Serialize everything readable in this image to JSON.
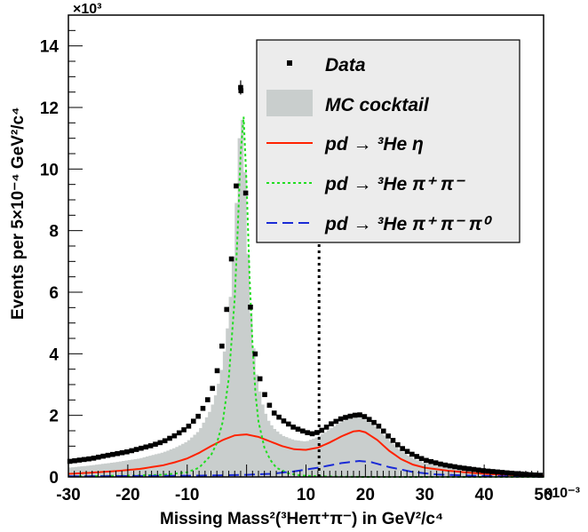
{
  "chart_data": {
    "type": "line",
    "title": "",
    "xlabel": "Missing Mass²(³Heπ⁺π⁻)  in GeV²/c⁴",
    "ylabel": "Events per   5×10⁻⁴ GeV²/c⁴",
    "x_multiplier": "×10⁻³",
    "y_multiplier": "×10³",
    "xlim": [
      -30,
      50
    ],
    "ylim": [
      0,
      15
    ],
    "x_ticks": [
      -30,
      -20,
      -10,
      10,
      20,
      30,
      40,
      50
    ],
    "y_ticks": [
      2,
      4,
      6,
      8,
      10,
      12,
      14
    ],
    "grid": false,
    "legend_position": "top-right",
    "cut_line_x": 12.2,
    "legend": [
      {
        "key": "data",
        "label": "Data",
        "style": "markers"
      },
      {
        "key": "mc",
        "label": "MC cocktail",
        "style": "filled",
        "color": "#c9cecd"
      },
      {
        "key": "eta",
        "label": "pd → ³He η",
        "style": "solid",
        "color": "#ff2200"
      },
      {
        "key": "pipi",
        "label": "pd → ³He π⁺ π⁻",
        "style": "dotted",
        "color": "#22dd22"
      },
      {
        "key": "pipipi0",
        "label": "pd → ³He π⁺ π⁻ π⁰",
        "style": "dashed",
        "color": "#1a2bd6"
      }
    ],
    "series": [
      {
        "name": "Data",
        "points": [
          [
            -30,
            0.5
          ],
          [
            -28,
            0.55
          ],
          [
            -26,
            0.6
          ],
          [
            -24,
            0.68
          ],
          [
            -22,
            0.75
          ],
          [
            -20,
            0.82
          ],
          [
            -18,
            0.92
          ],
          [
            -16,
            1.02
          ],
          [
            -14,
            1.15
          ],
          [
            -12,
            1.35
          ],
          [
            -10,
            1.6
          ],
          [
            -8,
            2.0
          ],
          [
            -6,
            2.7
          ],
          [
            -5,
            3.4
          ],
          [
            -4,
            4.4
          ],
          [
            -3,
            6.0
          ],
          [
            -2,
            8.4
          ],
          [
            -1.5,
            10.5
          ],
          [
            -1,
            12.65
          ],
          [
            -0.5,
            11.6
          ],
          [
            0,
            8.2
          ],
          [
            0.5,
            5.8
          ],
          [
            1.5,
            3.9
          ],
          [
            2.5,
            2.95
          ],
          [
            3.5,
            2.45
          ],
          [
            4.5,
            2.1
          ],
          [
            6,
            1.85
          ],
          [
            8,
            1.6
          ],
          [
            10,
            1.45
          ],
          [
            11,
            1.4
          ],
          [
            12,
            1.45
          ],
          [
            13,
            1.55
          ],
          [
            14,
            1.7
          ],
          [
            16,
            1.9
          ],
          [
            18,
            2.0
          ],
          [
            19,
            2.02
          ],
          [
            20,
            1.95
          ],
          [
            22,
            1.7
          ],
          [
            24,
            1.3
          ],
          [
            26,
            0.95
          ],
          [
            28,
            0.72
          ],
          [
            30,
            0.55
          ],
          [
            33,
            0.4
          ],
          [
            36,
            0.3
          ],
          [
            40,
            0.2
          ],
          [
            44,
            0.13
          ],
          [
            48,
            0.07
          ],
          [
            50,
            0.05
          ]
        ]
      },
      {
        "name": "MC cocktail",
        "points": [
          [
            -30,
            0.3
          ],
          [
            -26,
            0.38
          ],
          [
            -22,
            0.48
          ],
          [
            -18,
            0.6
          ],
          [
            -14,
            0.8
          ],
          [
            -12,
            0.95
          ],
          [
            -10,
            1.15
          ],
          [
            -8,
            1.5
          ],
          [
            -6,
            2.2
          ],
          [
            -5,
            2.8
          ],
          [
            -4,
            3.7
          ],
          [
            -3,
            5.2
          ],
          [
            -2,
            7.8
          ],
          [
            -1.5,
            10.0
          ],
          [
            -1,
            12.0
          ],
          [
            -0.5,
            11.2
          ],
          [
            0,
            8.6
          ],
          [
            0.5,
            5.9
          ],
          [
            1.5,
            3.6
          ],
          [
            2.5,
            2.5
          ],
          [
            3.5,
            1.9
          ],
          [
            4.5,
            1.6
          ],
          [
            6,
            1.35
          ],
          [
            8,
            1.2
          ],
          [
            10,
            1.15
          ],
          [
            12,
            1.3
          ],
          [
            14,
            1.55
          ],
          [
            16,
            1.8
          ],
          [
            18,
            1.93
          ],
          [
            19,
            1.97
          ],
          [
            20,
            1.9
          ],
          [
            22,
            1.6
          ],
          [
            24,
            1.2
          ],
          [
            26,
            0.85
          ],
          [
            28,
            0.6
          ],
          [
            30,
            0.45
          ],
          [
            33,
            0.32
          ],
          [
            36,
            0.22
          ],
          [
            40,
            0.14
          ],
          [
            44,
            0.08
          ],
          [
            48,
            0.04
          ],
          [
            50,
            0.03
          ]
        ]
      },
      {
        "name": "pd → ³He η",
        "points": [
          [
            -30,
            0.1
          ],
          [
            -26,
            0.14
          ],
          [
            -22,
            0.19
          ],
          [
            -18,
            0.26
          ],
          [
            -14,
            0.38
          ],
          [
            -12,
            0.48
          ],
          [
            -10,
            0.6
          ],
          [
            -8,
            0.78
          ],
          [
            -6,
            1.0
          ],
          [
            -4,
            1.2
          ],
          [
            -2,
            1.35
          ],
          [
            0,
            1.38
          ],
          [
            2,
            1.3
          ],
          [
            4,
            1.15
          ],
          [
            6,
            1.0
          ],
          [
            8,
            0.9
          ],
          [
            10,
            0.88
          ],
          [
            12,
            0.95
          ],
          [
            14,
            1.12
          ],
          [
            16,
            1.32
          ],
          [
            18,
            1.48
          ],
          [
            19,
            1.5
          ],
          [
            20,
            1.45
          ],
          [
            22,
            1.2
          ],
          [
            24,
            0.85
          ],
          [
            26,
            0.58
          ],
          [
            28,
            0.4
          ],
          [
            30,
            0.3
          ],
          [
            34,
            0.2
          ],
          [
            38,
            0.13
          ],
          [
            42,
            0.08
          ],
          [
            46,
            0.05
          ],
          [
            50,
            0.03
          ]
        ]
      },
      {
        "name": "pd → ³He π⁺ π⁻",
        "points": [
          [
            -30,
            0.02
          ],
          [
            -20,
            0.04
          ],
          [
            -14,
            0.07
          ],
          [
            -10,
            0.15
          ],
          [
            -8,
            0.3
          ],
          [
            -6,
            0.7
          ],
          [
            -5,
            1.1
          ],
          [
            -4,
            1.8
          ],
          [
            -3,
            3.2
          ],
          [
            -2,
            5.8
          ],
          [
            -1.5,
            8.0
          ],
          [
            -1,
            10.5
          ],
          [
            -0.5,
            11.7
          ],
          [
            0,
            9.5
          ],
          [
            0.5,
            6.5
          ],
          [
            1,
            4.3
          ],
          [
            1.5,
            2.7
          ],
          [
            2,
            1.8
          ],
          [
            3,
            0.95
          ],
          [
            4,
            0.55
          ],
          [
            5,
            0.3
          ],
          [
            7,
            0.12
          ],
          [
            9,
            0.05
          ],
          [
            12,
            0.02
          ],
          [
            20,
            0.0
          ],
          [
            50,
            0.0
          ]
        ]
      },
      {
        "name": "pd → ³He π⁺ π⁻ π⁰",
        "points": [
          [
            -30,
            0.02
          ],
          [
            -20,
            0.03
          ],
          [
            -10,
            0.04
          ],
          [
            -5,
            0.05
          ],
          [
            0,
            0.07
          ],
          [
            4,
            0.1
          ],
          [
            8,
            0.18
          ],
          [
            12,
            0.3
          ],
          [
            16,
            0.45
          ],
          [
            19,
            0.52
          ],
          [
            21,
            0.48
          ],
          [
            24,
            0.32
          ],
          [
            28,
            0.16
          ],
          [
            32,
            0.08
          ],
          [
            38,
            0.04
          ],
          [
            44,
            0.02
          ],
          [
            50,
            0.01
          ]
        ]
      }
    ]
  }
}
